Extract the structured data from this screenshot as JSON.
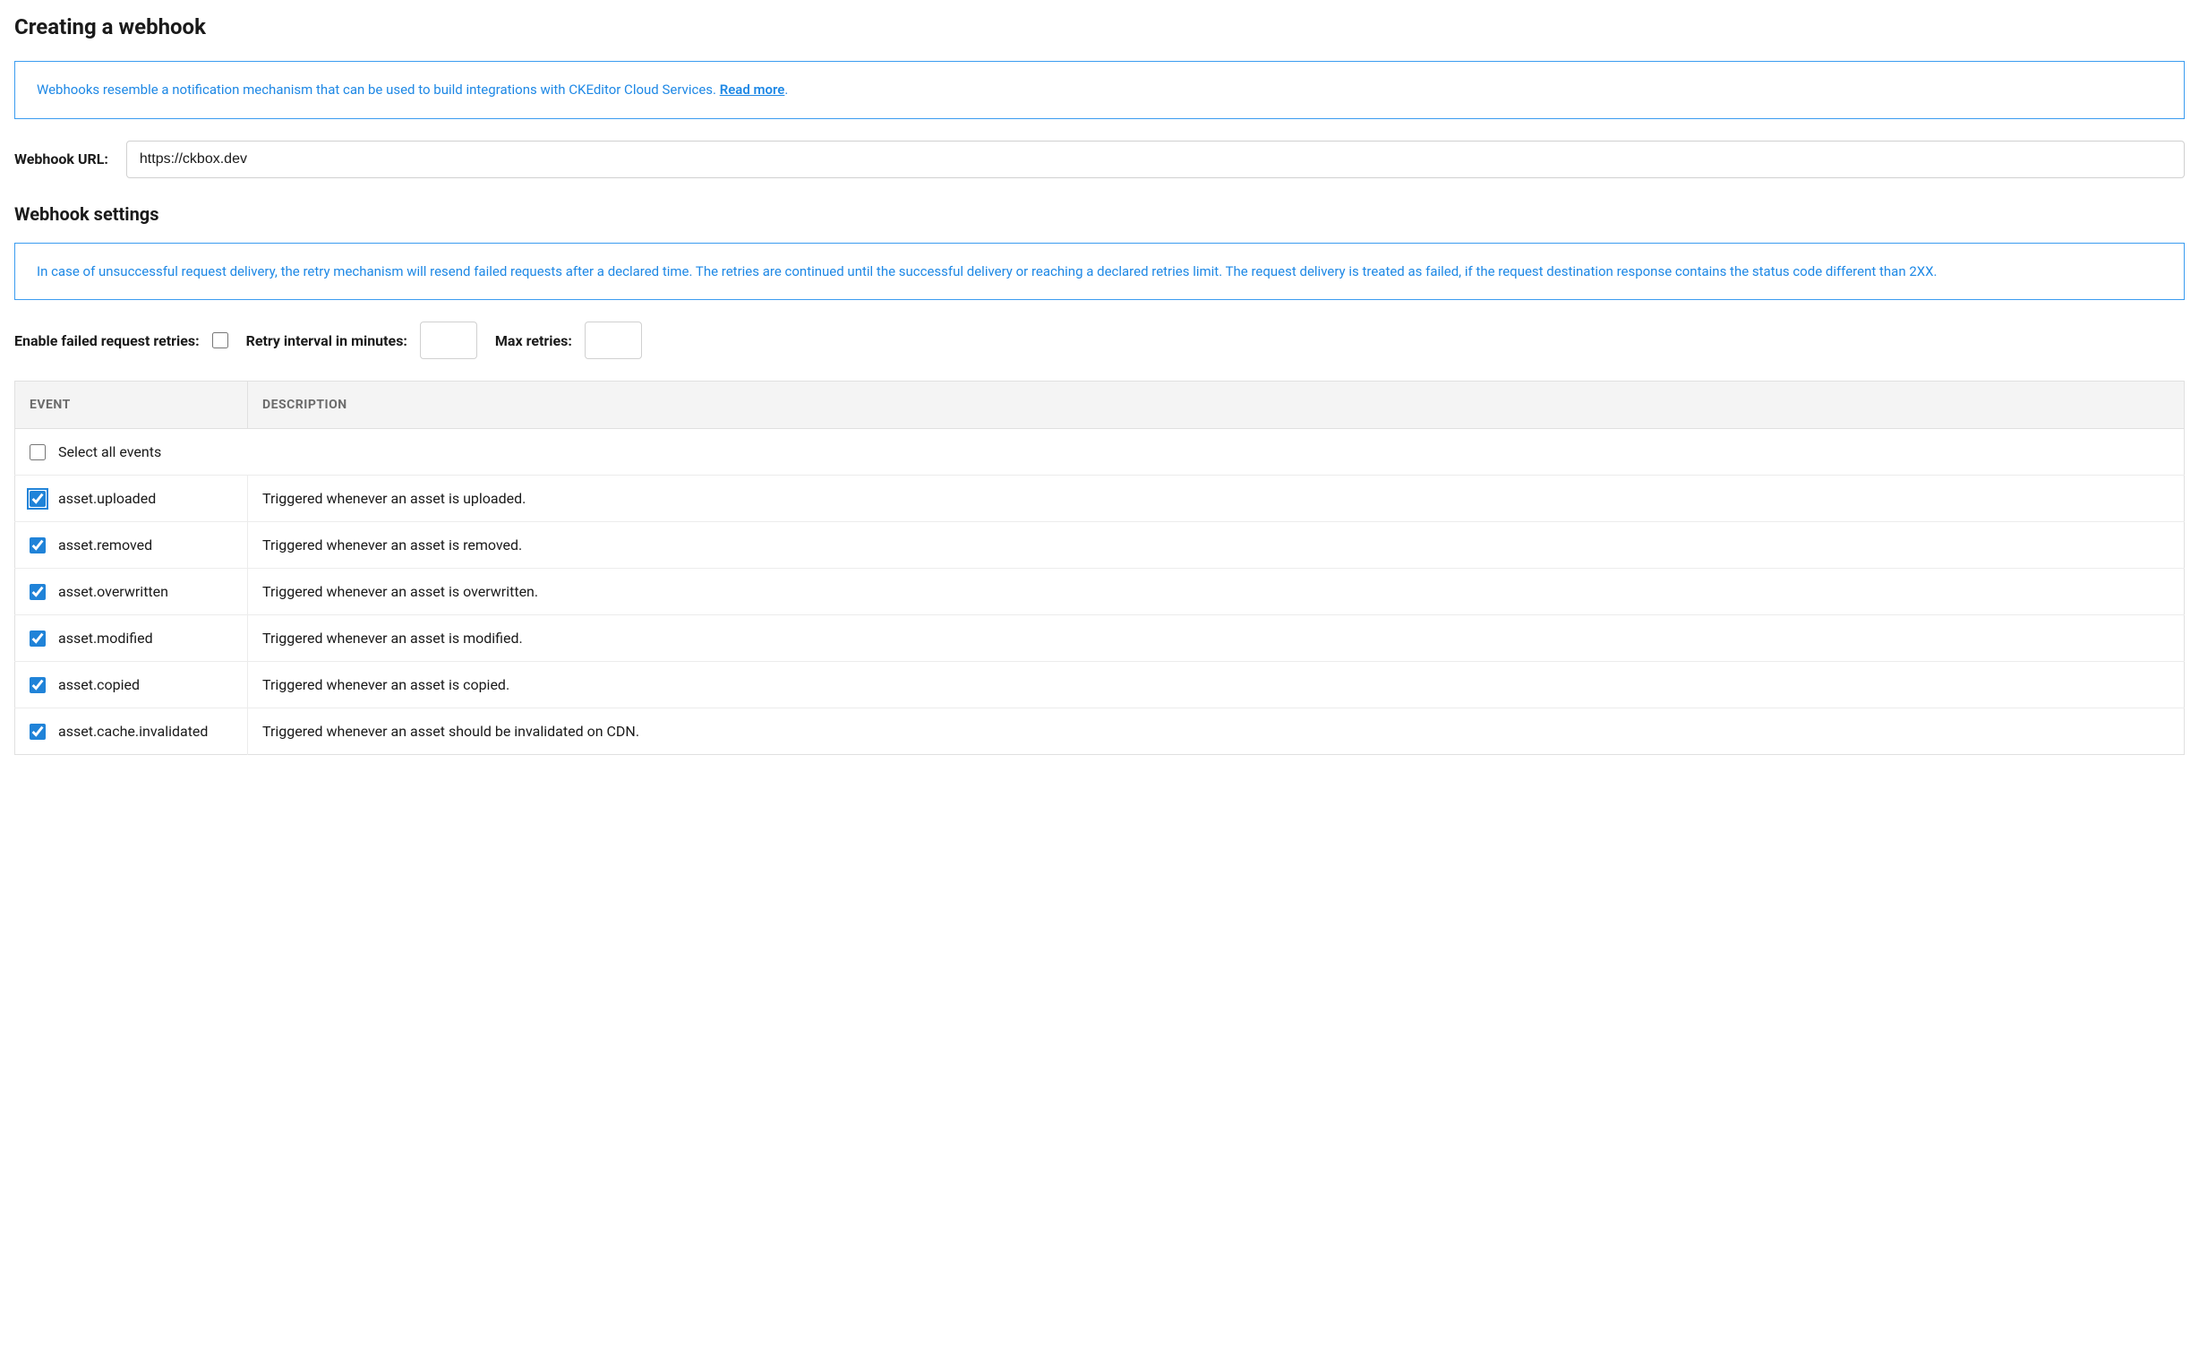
{
  "page_title": "Creating a webhook",
  "info_box_1": {
    "text_prefix": "Webhooks resemble a notification mechanism that can be used to build integrations with CKEditor Cloud Services. ",
    "link_text": "Read more",
    "text_suffix": "."
  },
  "url_section": {
    "label": "Webhook URL:",
    "value": "https://ckbox.dev"
  },
  "settings_title": "Webhook settings",
  "info_box_2": {
    "text": "In case of unsuccessful request delivery, the retry mechanism will resend failed requests after a declared time. The retries are continued until the successful delivery or reaching a declared retries limit. The request delivery is treated as failed, if the request destination response contains the status code different than 2XX."
  },
  "settings": {
    "enable_retries_label": "Enable failed request retries:",
    "enable_retries_checked": false,
    "retry_interval_label": "Retry interval in minutes:",
    "retry_interval_value": "",
    "max_retries_label": "Max retries:",
    "max_retries_value": ""
  },
  "table": {
    "columns": [
      "EVENT",
      "DESCRIPTION"
    ],
    "select_all_label": "Select all events",
    "select_all_checked": false,
    "rows": [
      {
        "event": "asset.uploaded",
        "description": "Triggered whenever an asset is uploaded.",
        "checked": true,
        "focused": true
      },
      {
        "event": "asset.removed",
        "description": "Triggered whenever an asset is removed.",
        "checked": true,
        "focused": false
      },
      {
        "event": "asset.overwritten",
        "description": "Triggered whenever an asset is overwritten.",
        "checked": true,
        "focused": false
      },
      {
        "event": "asset.modified",
        "description": "Triggered whenever an asset is modified.",
        "checked": true,
        "focused": false
      },
      {
        "event": "asset.copied",
        "description": "Triggered whenever an asset is copied.",
        "checked": true,
        "focused": false
      },
      {
        "event": "asset.cache.invalidated",
        "description": "Triggered whenever an asset should be invalidated on CDN.",
        "checked": true,
        "focused": false
      }
    ]
  },
  "colors": {
    "info_border": "#3b9cf0",
    "info_text": "#1e88e5",
    "checkbox_accent": "#2083d8"
  }
}
